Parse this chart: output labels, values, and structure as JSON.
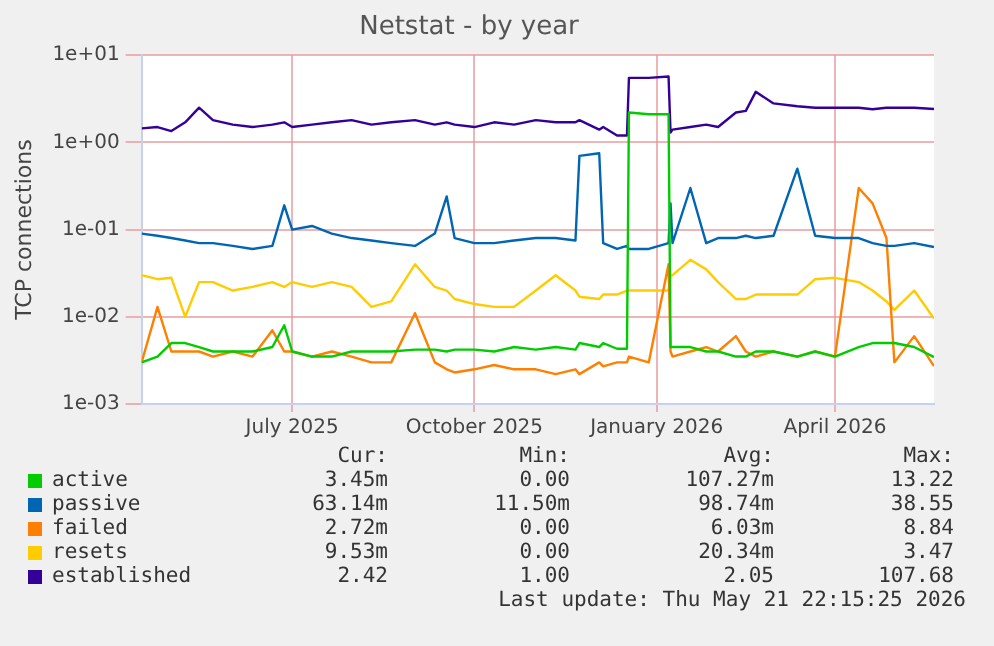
{
  "chart_data": {
    "type": "line",
    "title": "Netstat - by year",
    "ylabel": "TCP connections",
    "log": "y",
    "grid": true,
    "legend": "bottom",
    "marker": "none",
    "line_style": "solid",
    "ylim": [
      0.001,
      10
    ],
    "yticks": [
      {
        "value": 0.001,
        "label": "1e-03"
      },
      {
        "value": 0.01,
        "label": "1e-02"
      },
      {
        "value": 0.1,
        "label": "1e-01"
      },
      {
        "value": 1,
        "label": "1e+00"
      },
      {
        "value": 10,
        "label": "1e+01"
      }
    ],
    "xlim": [
      "2025-04-16",
      "2026-05-21"
    ],
    "xticks": [
      {
        "value": "2025-07-01",
        "label": "July 2025"
      },
      {
        "value": "2025-10-01",
        "label": "October 2025"
      },
      {
        "value": "2026-01-01",
        "label": "January 2026"
      },
      {
        "value": "2026-04-01",
        "label": "April 2026"
      }
    ],
    "x": [
      "2025-04-16",
      "2025-04-24",
      "2025-05-01",
      "2025-05-08",
      "2025-05-15",
      "2025-05-22",
      "2025-06-01",
      "2025-06-11",
      "2025-06-21",
      "2025-06-27",
      "2025-07-01",
      "2025-07-11",
      "2025-07-21",
      "2025-07-31",
      "2025-08-10",
      "2025-08-20",
      "2025-09-01",
      "2025-09-11",
      "2025-09-17",
      "2025-09-21",
      "2025-10-01",
      "2025-10-11",
      "2025-10-21",
      "2025-11-01",
      "2025-11-11",
      "2025-11-21",
      "2025-11-23",
      "2025-12-03",
      "2025-12-05",
      "2025-12-12",
      "2025-12-17",
      "2025-12-18",
      "2025-12-28",
      "2026-01-07",
      "2026-01-08",
      "2026-01-09",
      "2026-01-18",
      "2026-01-26",
      "2026-02-01",
      "2026-02-10",
      "2026-02-15",
      "2026-02-20",
      "2026-03-01",
      "2026-03-13",
      "2026-03-22",
      "2026-04-01",
      "2026-04-13",
      "2026-04-20",
      "2026-04-27",
      "2026-05-01",
      "2026-05-11",
      "2026-05-21"
    ],
    "series": [
      {
        "name": "active",
        "color": "#00cc00",
        "values": [
          0.003,
          0.0035,
          0.005,
          0.005,
          0.0045,
          0.004,
          0.004,
          0.004,
          0.0045,
          0.008,
          0.004,
          0.0035,
          0.0035,
          0.004,
          0.004,
          0.004,
          0.0042,
          0.0042,
          0.004,
          0.0042,
          0.0042,
          0.004,
          0.0045,
          0.0042,
          0.0045,
          0.0042,
          0.005,
          0.0045,
          0.005,
          0.0043,
          0.0043,
          2.2,
          2.1,
          2.1,
          0.0045,
          0.0045,
          0.0045,
          0.004,
          0.004,
          0.0035,
          0.0035,
          0.004,
          0.004,
          0.0035,
          0.004,
          0.0035,
          0.0045,
          0.005,
          0.005,
          0.005,
          0.0045,
          0.00345
        ]
      },
      {
        "name": "passive",
        "color": "#0066b3",
        "values": [
          0.09,
          0.085,
          0.08,
          0.075,
          0.07,
          0.07,
          0.065,
          0.06,
          0.065,
          0.19,
          0.1,
          0.11,
          0.09,
          0.08,
          0.075,
          0.07,
          0.065,
          0.09,
          0.24,
          0.08,
          0.07,
          0.07,
          0.075,
          0.08,
          0.08,
          0.075,
          0.7,
          0.75,
          0.07,
          0.06,
          0.065,
          0.06,
          0.06,
          0.07,
          0.2,
          0.07,
          0.3,
          0.07,
          0.08,
          0.08,
          0.085,
          0.08,
          0.085,
          0.5,
          0.085,
          0.08,
          0.08,
          0.07,
          0.065,
          0.065,
          0.07,
          0.063
        ]
      },
      {
        "name": "failed",
        "color": "#ff8000",
        "values": [
          0.003,
          0.013,
          0.004,
          0.004,
          0.004,
          0.0035,
          0.004,
          0.0035,
          0.007,
          0.004,
          0.004,
          0.0035,
          0.004,
          0.0035,
          0.003,
          0.003,
          0.011,
          0.003,
          0.0025,
          0.0023,
          0.0025,
          0.0028,
          0.0025,
          0.0025,
          0.0022,
          0.0025,
          0.0022,
          0.003,
          0.0027,
          0.003,
          0.003,
          0.0035,
          0.003,
          0.04,
          0.004,
          0.0035,
          0.004,
          0.0045,
          0.004,
          0.006,
          0.004,
          0.0035,
          0.004,
          0.0035,
          0.004,
          0.0035,
          0.3,
          0.2,
          0.08,
          0.003,
          0.006,
          0.00272
        ]
      },
      {
        "name": "resets",
        "color": "#ffcc00",
        "values": [
          0.03,
          0.027,
          0.028,
          0.01,
          0.025,
          0.025,
          0.02,
          0.022,
          0.025,
          0.022,
          0.025,
          0.022,
          0.025,
          0.022,
          0.013,
          0.015,
          0.04,
          0.022,
          0.02,
          0.016,
          0.014,
          0.013,
          0.013,
          0.02,
          0.03,
          0.02,
          0.017,
          0.016,
          0.018,
          0.018,
          0.02,
          0.02,
          0.02,
          0.02,
          0.03,
          0.03,
          0.045,
          0.035,
          0.025,
          0.016,
          0.016,
          0.018,
          0.018,
          0.018,
          0.027,
          0.028,
          0.025,
          0.02,
          0.015,
          0.012,
          0.02,
          0.00953
        ]
      },
      {
        "name": "established",
        "color": "#330099",
        "values": [
          1.45,
          1.5,
          1.35,
          1.7,
          2.5,
          1.8,
          1.6,
          1.5,
          1.6,
          1.7,
          1.5,
          1.6,
          1.7,
          1.8,
          1.6,
          1.7,
          1.8,
          1.6,
          1.7,
          1.6,
          1.5,
          1.7,
          1.6,
          1.8,
          1.7,
          1.7,
          1.8,
          1.4,
          1.5,
          1.2,
          1.2,
          5.5,
          5.5,
          5.7,
          1.3,
          1.4,
          1.5,
          1.6,
          1.5,
          2.2,
          2.3,
          3.8,
          2.8,
          2.6,
          2.5,
          2.5,
          2.5,
          2.4,
          2.5,
          2.5,
          2.5,
          2.42
        ]
      }
    ],
    "annotations": [
      "Cur:",
      "Min:",
      "Avg:",
      "Max:",
      "3.45m",
      "0.00",
      "107.27m",
      "13.22",
      "63.14m",
      "11.50m",
      "98.74m",
      "38.55",
      "2.72m",
      "0.00",
      "6.03m",
      "8.84",
      "9.53m",
      "0.00",
      "20.34m",
      "3.47",
      "2.42",
      "1.00",
      "2.05",
      "107.68",
      "Last update: Thu May 21 22:15:25 2026"
    ]
  }
}
